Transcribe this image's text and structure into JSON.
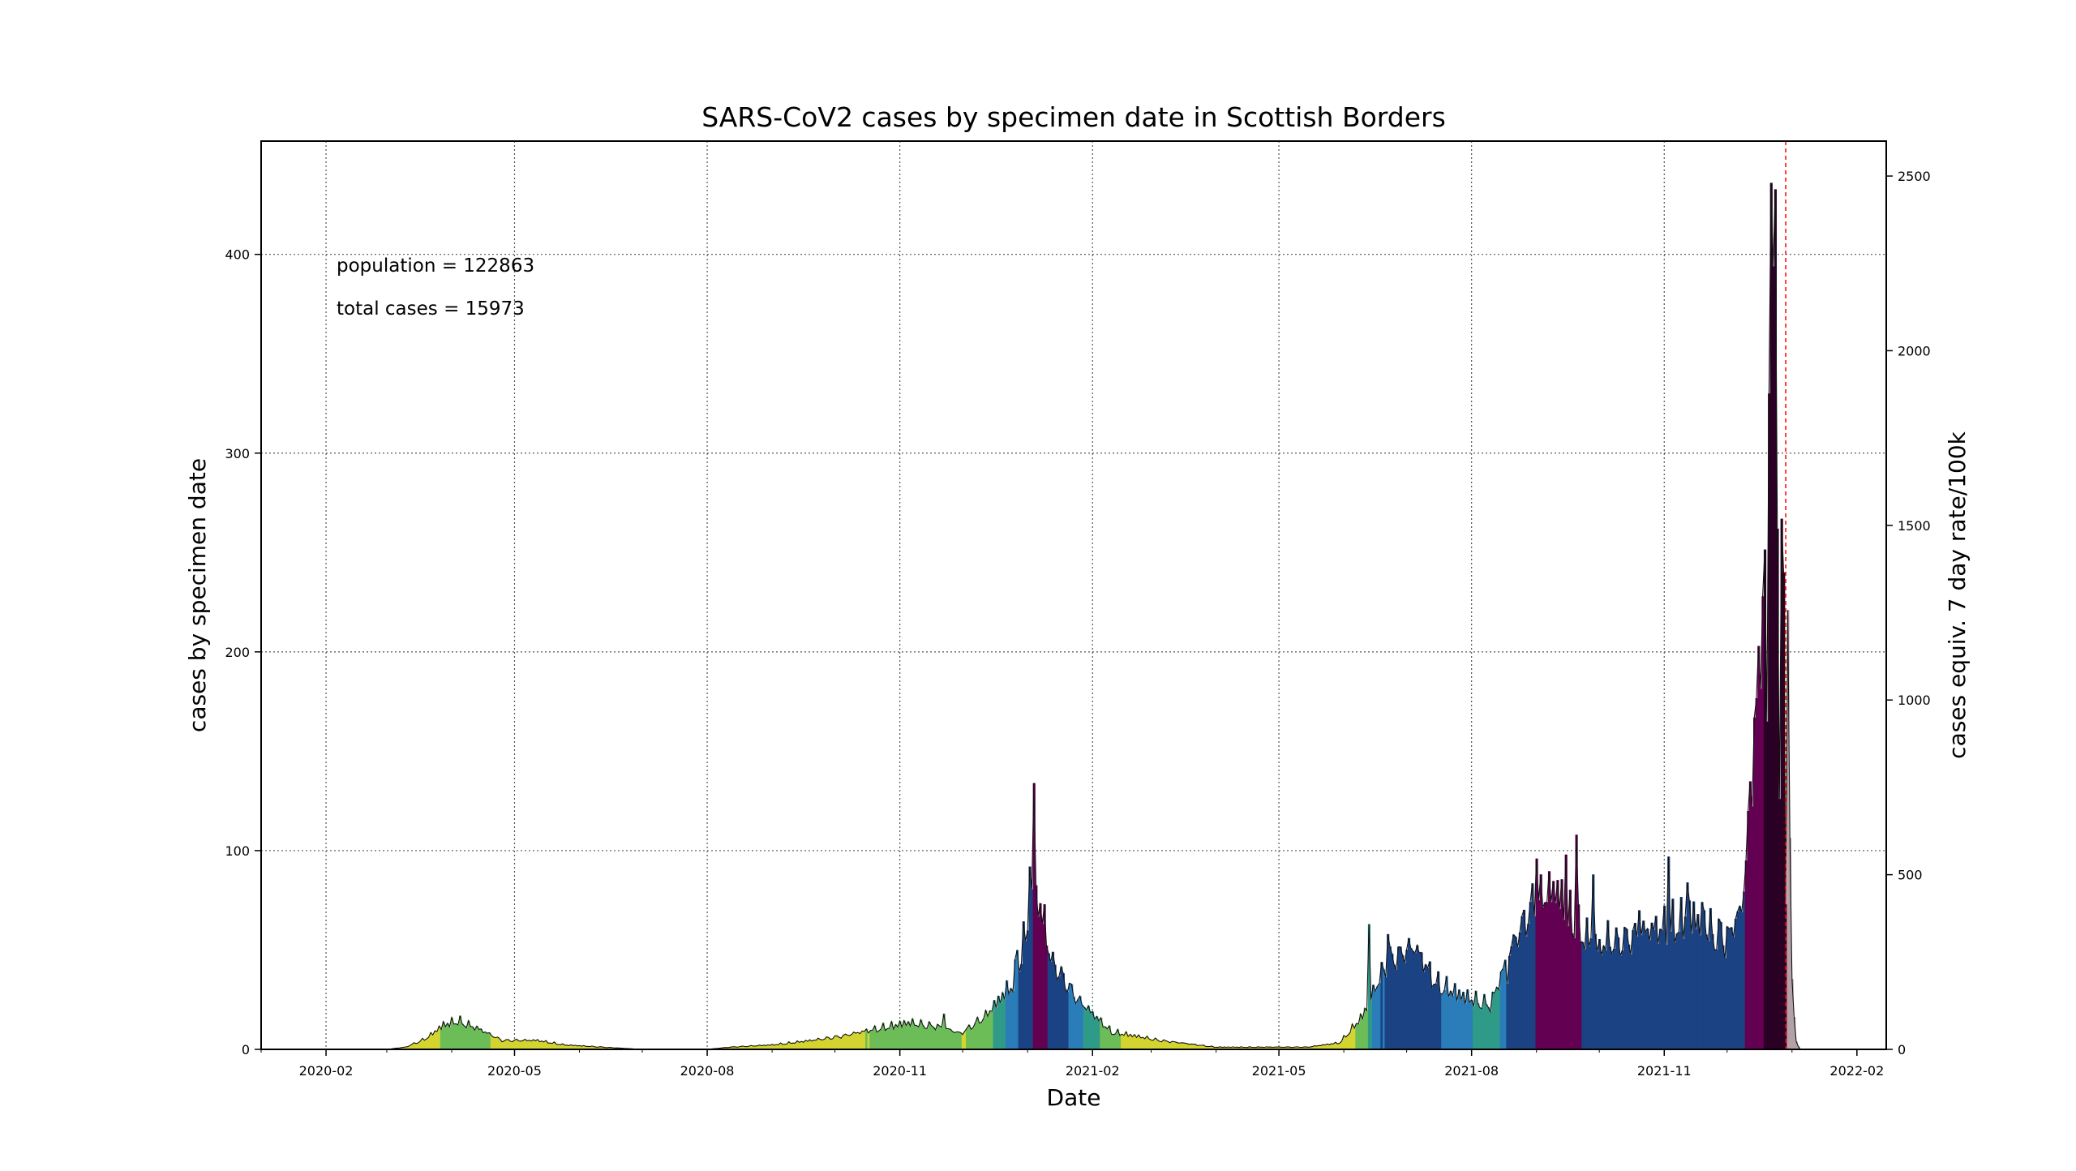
{
  "chart_data": {
    "type": "bar",
    "title": "SARS-CoV2 cases by specimen date in Scottish Borders",
    "xlabel": "Date",
    "ylabel": "cases by specimen date",
    "ylabel_right": "cases equiv. 7 day rate/100k",
    "annotations": [
      "population = 122863",
      "total cases = 15973"
    ],
    "x_range": [
      "2020-01-01",
      "2022-02-15"
    ],
    "ylim": [
      0,
      457
    ],
    "ylim_right": [
      0,
      2600
    ],
    "x_ticks": [
      "2020-02",
      "2020-05",
      "2020-08",
      "2020-11",
      "2021-02",
      "2021-05",
      "2021-08",
      "2021-11",
      "2022-02"
    ],
    "y_ticks": [
      0,
      100,
      200,
      300,
      400
    ],
    "y_ticks_right": [
      0,
      500,
      1000,
      1500,
      2000,
      2500
    ],
    "grid": true,
    "reference_line": {
      "date": "2021-12-29",
      "color": "#ff0000",
      "style": "dashed"
    },
    "anchors": [
      [
        "2020-01-01",
        0
      ],
      [
        "2020-03-01",
        0
      ],
      [
        "2020-03-10",
        1
      ],
      [
        "2020-03-20",
        5
      ],
      [
        "2020-03-28",
        11
      ],
      [
        "2020-04-04",
        13
      ],
      [
        "2020-04-14",
        9
      ],
      [
        "2020-04-25",
        4
      ],
      [
        "2020-05-12",
        4
      ],
      [
        "2020-05-25",
        2
      ],
      [
        "2020-06-12",
        1
      ],
      [
        "2020-07-01",
        0
      ],
      [
        "2020-08-01",
        0
      ],
      [
        "2020-08-12",
        1
      ],
      [
        "2020-09-01",
        2
      ],
      [
        "2020-09-20",
        4
      ],
      [
        "2020-10-05",
        6
      ],
      [
        "2020-10-25",
        10
      ],
      [
        "2020-11-05",
        12
      ],
      [
        "2020-11-20",
        10
      ],
      [
        "2020-11-30",
        7
      ],
      [
        "2020-12-12",
        15
      ],
      [
        "2020-12-25",
        30
      ],
      [
        "2021-01-05",
        70
      ],
      [
        "2021-01-12",
        40
      ],
      [
        "2021-01-25",
        22
      ],
      [
        "2021-02-10",
        8
      ],
      [
        "2021-03-05",
        4
      ],
      [
        "2021-04-01",
        1
      ],
      [
        "2021-05-15",
        1
      ],
      [
        "2021-05-30",
        3
      ],
      [
        "2021-06-10",
        15
      ],
      [
        "2021-06-22",
        40
      ],
      [
        "2021-07-05",
        45
      ],
      [
        "2021-07-15",
        30
      ],
      [
        "2021-07-28",
        24
      ],
      [
        "2021-08-10",
        20
      ],
      [
        "2021-08-20",
        45
      ],
      [
        "2021-08-30",
        65
      ],
      [
        "2021-09-10",
        72
      ],
      [
        "2021-09-20",
        55
      ],
      [
        "2021-10-01",
        45
      ],
      [
        "2021-10-15",
        50
      ],
      [
        "2021-11-01",
        55
      ],
      [
        "2021-11-15",
        60
      ],
      [
        "2021-11-30",
        48
      ],
      [
        "2021-12-08",
        62
      ],
      [
        "2021-12-15",
        150
      ],
      [
        "2021-12-20",
        240
      ],
      [
        "2021-12-24",
        330
      ],
      [
        "2021-12-27",
        260
      ],
      [
        "2021-12-30",
        180
      ],
      [
        "2022-01-01",
        30
      ],
      [
        "2022-01-03",
        3
      ],
      [
        "2022-01-05",
        0
      ]
    ],
    "spikes": [
      [
        "2020-04-01",
        16
      ],
      [
        "2020-11-22",
        18
      ],
      [
        "2020-12-27",
        50
      ],
      [
        "2021-01-02",
        92
      ],
      [
        "2021-01-04",
        134
      ],
      [
        "2021-01-09",
        73
      ],
      [
        "2021-06-13",
        63
      ],
      [
        "2021-06-22",
        58
      ],
      [
        "2021-07-02",
        56
      ],
      [
        "2021-08-18",
        33
      ],
      [
        "2021-09-01",
        96
      ],
      [
        "2021-09-15",
        98
      ],
      [
        "2021-09-20",
        108
      ],
      [
        "2021-09-28",
        88
      ],
      [
        "2021-10-05",
        65
      ],
      [
        "2021-10-20",
        70
      ],
      [
        "2021-11-03",
        97
      ],
      [
        "2021-11-12",
        84
      ],
      [
        "2021-11-20",
        70
      ],
      [
        "2021-11-28",
        64
      ],
      [
        "2021-12-10",
        95
      ],
      [
        "2021-12-14",
        167
      ],
      [
        "2021-12-16",
        203
      ],
      [
        "2021-12-18",
        228
      ],
      [
        "2021-12-20",
        165
      ],
      [
        "2021-12-21",
        330
      ],
      [
        "2021-12-22",
        436
      ],
      [
        "2021-12-23",
        394
      ],
      [
        "2021-12-25",
        262
      ],
      [
        "2021-12-26",
        126
      ],
      [
        "2021-12-27",
        267
      ],
      [
        "2021-12-28",
        240
      ],
      [
        "2021-12-29",
        73
      ]
    ],
    "rate_colors": [
      {
        "max": 50,
        "color": "#d4d431"
      },
      {
        "max": 100,
        "color": "#6cbd58"
      },
      {
        "max": 150,
        "color": "#2f9a88"
      },
      {
        "max": 200,
        "color": "#2a7db8"
      },
      {
        "max": 400,
        "color": "#1b4383"
      },
      {
        "max": 1000,
        "color": "#630052"
      },
      {
        "max": 100000,
        "color": "#2b0025"
      }
    ],
    "tail_color": "#b5a0a8",
    "outline_color": "#111111"
  }
}
